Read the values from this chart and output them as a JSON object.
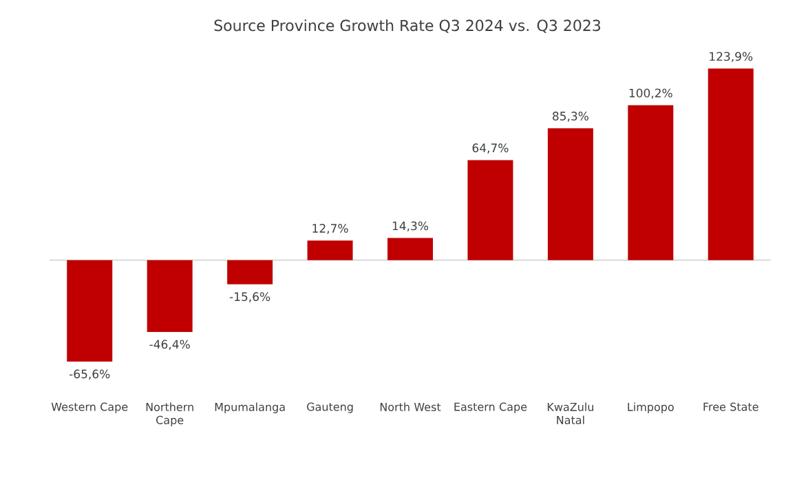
{
  "chart_data": {
    "type": "bar",
    "title": "Source Province Growth Rate Q3 2024 vs. Q3 2023",
    "categories": [
      "Western Cape",
      "Northern Cape",
      "Mpumalanga",
      "Gauteng",
      "North West",
      "Eastern  Cape",
      "KwaZulu Natal",
      "Limpopo",
      "Free State"
    ],
    "values": [
      -65.6,
      -46.4,
      -15.6,
      12.7,
      14.3,
      64.7,
      85.3,
      100.2,
      123.9
    ],
    "value_labels": [
      "-65,6%",
      "-46,4%",
      "-15,6%",
      "12,7%",
      "14,3%",
      "64,7%",
      "85,3%",
      "100,2%",
      "123,9%"
    ],
    "color": "#c00000"
  }
}
